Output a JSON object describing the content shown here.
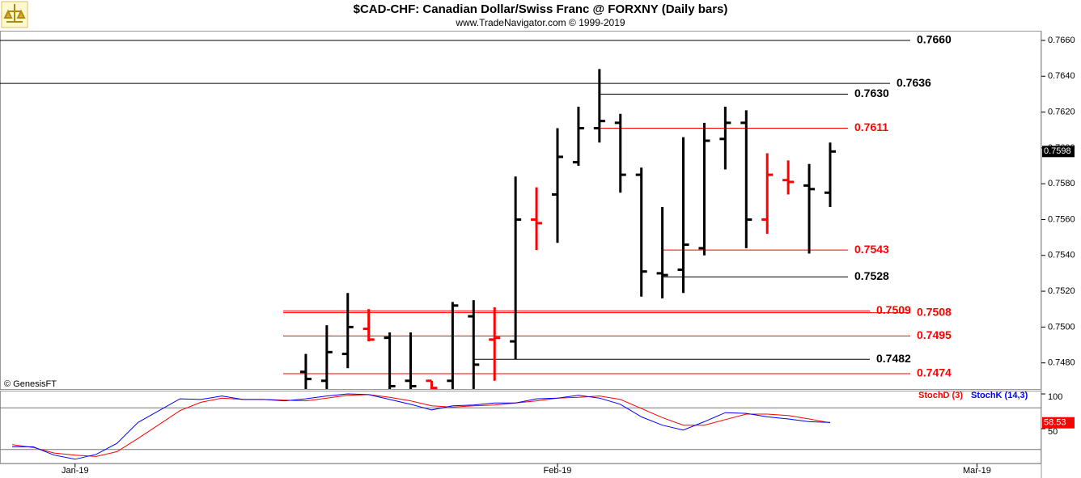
{
  "chart_data": [
    {
      "type": "ohlc",
      "title": "$CAD-CHF:  Canadian Dollar/Swiss Franc @ FORXNY  (Daily bars)",
      "subtitle": "www.TradeNavigator.com © 1999-2019",
      "watermark": "© GenesisFT",
      "x": [
        0,
        1,
        2,
        3,
        4,
        5,
        6,
        7,
        8,
        9,
        10,
        11,
        12,
        13,
        14,
        15,
        16,
        17,
        18,
        19,
        20,
        21,
        22,
        23,
        24,
        25
      ],
      "open": [
        0.7475,
        0.747,
        0.7485,
        0.7499,
        0.7494,
        0.747,
        0.747,
        0.747,
        0.7506,
        0.7493,
        0.7492,
        0.756,
        0.7574,
        0.7592,
        0.7611,
        0.7614,
        0.7585,
        0.753,
        0.7532,
        0.7544,
        0.7605,
        0.7614,
        0.756,
        0.7582,
        0.7579,
        0.7575
      ],
      "high": [
        0.7485,
        0.7501,
        0.7519,
        0.751,
        0.7497,
        0.7497,
        0.747,
        0.7514,
        0.7515,
        0.7511,
        0.7584,
        0.7578,
        0.7611,
        0.7623,
        0.7644,
        0.7619,
        0.7589,
        0.7567,
        0.7606,
        0.7614,
        0.7623,
        0.7621,
        0.7597,
        0.7593,
        0.7591,
        0.7603
      ],
      "low": [
        0.7465,
        0.7465,
        0.7477,
        0.7492,
        0.7465,
        0.7465,
        0.7465,
        0.7465,
        0.7465,
        0.747,
        0.7482,
        0.7543,
        0.7547,
        0.759,
        0.7603,
        0.7575,
        0.7517,
        0.7516,
        0.7519,
        0.754,
        0.7588,
        0.7544,
        0.7552,
        0.7574,
        0.7541,
        0.7567
      ],
      "close": [
        0.7471,
        0.7486,
        0.75,
        0.7493,
        0.7467,
        0.7467,
        0.7466,
        0.7512,
        0.7479,
        0.7494,
        0.756,
        0.7558,
        0.7595,
        0.7611,
        0.7615,
        0.7585,
        0.7531,
        0.7529,
        0.7546,
        0.7604,
        0.7614,
        0.756,
        0.7585,
        0.7581,
        0.7577,
        0.7598
      ],
      "colors": [
        "#000000",
        "#000000",
        "#000000",
        "#ff0000",
        "#000000",
        "#000000",
        "#ff0000",
        "#000000",
        "#000000",
        "#ff0000",
        "#000000",
        "#ff0000",
        "#000000",
        "#000000",
        "#000000",
        "#000000",
        "#000000",
        "#000000",
        "#000000",
        "#000000",
        "#000000",
        "#000000",
        "#ff0000",
        "#ff0000",
        "#000000",
        "#000000"
      ],
      "xlim": [
        -14.58,
        35.07
      ],
      "ylim": [
        0.74654,
        0.76654
      ],
      "yticks": [
        {
          "value": 0.748,
          "label": "0.7480"
        },
        {
          "value": 0.75,
          "label": "0.7500"
        },
        {
          "value": 0.752,
          "label": "0.7520"
        },
        {
          "value": 0.754,
          "label": "0.7540"
        },
        {
          "value": 0.756,
          "label": "0.7560"
        },
        {
          "value": 0.758,
          "label": "0.7580"
        },
        {
          "value": 0.76,
          "label": "0.7600"
        },
        {
          "value": 0.762,
          "label": "0.7620"
        },
        {
          "value": 0.764,
          "label": "0.7640"
        },
        {
          "value": 0.766,
          "label": "0.7660"
        }
      ],
      "last_price": {
        "value": 0.7598,
        "label": "0.7598"
      },
      "levels": [
        {
          "value": 0.766,
          "label": "0.7660",
          "color": "#000000"
        },
        {
          "value": 0.7636,
          "label": "0.7636",
          "color": "#000000"
        },
        {
          "value": 0.763,
          "label": "0.7630",
          "color": "#000000"
        },
        {
          "value": 0.7611,
          "label": "0.7611",
          "color": "#ff0000"
        },
        {
          "value": 0.7543,
          "label": "0.7543",
          "color": "#ff0000"
        },
        {
          "value": 0.7528,
          "label": "0.7528",
          "color": "#000000"
        },
        {
          "value": 0.7509,
          "label": "0.7509",
          "color": "#ff0000"
        },
        {
          "value": 0.7508,
          "label": "0.7508",
          "color": "#ff0000"
        },
        {
          "value": 0.7495,
          "label": "0.7495",
          "color": "#ff0000"
        },
        {
          "value": 0.7482,
          "label": "0.7482",
          "color": "#000000"
        },
        {
          "value": 0.7474,
          "label": "0.7474",
          "color": "#ff0000"
        }
      ]
    },
    {
      "type": "line",
      "x": [
        -14,
        -13,
        -12,
        -11,
        -10,
        -9,
        -8,
        -7,
        -6,
        -5,
        -4,
        -3,
        -2,
        -1,
        0,
        1,
        2,
        3,
        4,
        5,
        6,
        7,
        8,
        9,
        10,
        11,
        12,
        13,
        14,
        15,
        16,
        17,
        18,
        19,
        20,
        21,
        22,
        23,
        24,
        25
      ],
      "series": [
        {
          "name": "StochD (3)",
          "color": "#ff0000",
          "values": [
            27,
            23,
            15,
            12,
            10,
            17,
            36,
            56,
            76,
            88,
            94,
            92,
            92,
            91,
            90,
            94,
            98,
            99,
            95,
            90,
            83,
            81,
            83,
            84,
            87,
            90,
            94,
            95,
            97,
            92,
            79,
            66,
            55,
            55,
            63,
            71,
            71,
            69,
            64,
            58.53
          ]
        },
        {
          "name": "StochK (14,3)",
          "color": "#0000ff",
          "values": [
            24,
            24,
            12,
            6,
            13,
            29,
            59,
            76,
            93,
            92,
            97,
            92,
            92,
            90,
            93,
            97,
            100,
            99,
            92,
            85,
            77,
            83,
            84,
            87,
            87,
            93,
            94,
            98,
            94,
            85,
            67,
            55,
            48,
            60,
            73,
            72,
            67,
            64,
            60,
            59
          ]
        }
      ],
      "xlim": [
        -14.58,
        35.07
      ],
      "ylim": [
        0,
        104.7
      ],
      "yticks": [
        50,
        100
      ],
      "bands": [
        20,
        80
      ],
      "last_value": {
        "value": 58.53,
        "label": "58.53"
      },
      "xticks": [
        {
          "value": -11,
          "label": "Jan-19"
        },
        {
          "value": 12,
          "label": "Feb-19"
        },
        {
          "value": 32,
          "label": "Mar-19"
        }
      ]
    }
  ]
}
